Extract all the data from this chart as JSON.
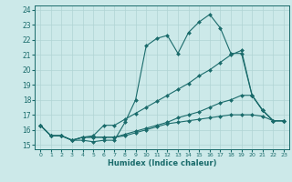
{
  "xlabel": "Humidex (Indice chaleur)",
  "xlim": [
    -0.5,
    23.5
  ],
  "ylim": [
    14.7,
    24.3
  ],
  "yticks": [
    15,
    16,
    17,
    18,
    19,
    20,
    21,
    22,
    23,
    24
  ],
  "xticks": [
    0,
    1,
    2,
    3,
    4,
    5,
    6,
    7,
    8,
    9,
    10,
    11,
    12,
    13,
    14,
    15,
    16,
    17,
    18,
    19,
    20,
    21,
    22,
    23
  ],
  "bg_color": "#cce9e9",
  "grid_color": "#b0d4d4",
  "line_color": "#1a6b6b",
  "lines": [
    {
      "x": [
        0,
        1,
        2,
        3,
        4,
        5,
        6,
        7,
        8,
        9,
        10,
        11,
        12,
        13,
        14,
        15,
        16,
        17,
        18,
        19,
        20,
        21,
        22,
        23
      ],
      "y": [
        16.3,
        15.6,
        15.6,
        15.3,
        15.3,
        15.2,
        15.3,
        15.3,
        16.5,
        18.0,
        21.6,
        22.1,
        22.3,
        21.1,
        22.5,
        23.2,
        23.7,
        22.8,
        21.1,
        21.1,
        18.3,
        17.3,
        16.6,
        16.6
      ]
    },
    {
      "x": [
        0,
        1,
        2,
        3,
        4,
        5,
        6,
        7,
        8,
        9,
        10,
        11,
        12,
        13,
        14,
        15,
        16,
        17,
        18,
        19,
        20,
        21,
        22,
        23
      ],
      "y": [
        16.3,
        15.6,
        15.6,
        15.3,
        15.5,
        15.6,
        16.3,
        16.3,
        16.7,
        17.1,
        17.5,
        17.9,
        18.3,
        18.7,
        19.1,
        19.6,
        20.0,
        20.5,
        21.0,
        21.3,
        18.3,
        17.3,
        16.6,
        16.6
      ]
    },
    {
      "x": [
        0,
        1,
        2,
        3,
        4,
        5,
        6,
        7,
        8,
        9,
        10,
        11,
        12,
        13,
        14,
        15,
        16,
        17,
        18,
        19,
        20,
        21,
        22,
        23
      ],
      "y": [
        16.3,
        15.6,
        15.6,
        15.3,
        15.5,
        15.5,
        15.5,
        15.5,
        15.7,
        15.9,
        16.1,
        16.3,
        16.5,
        16.8,
        17.0,
        17.2,
        17.5,
        17.8,
        18.0,
        18.3,
        18.3,
        17.3,
        16.6,
        16.6
      ]
    },
    {
      "x": [
        0,
        1,
        2,
        3,
        4,
        5,
        6,
        7,
        8,
        9,
        10,
        11,
        12,
        13,
        14,
        15,
        16,
        17,
        18,
        19,
        20,
        21,
        22,
        23
      ],
      "y": [
        16.3,
        15.6,
        15.6,
        15.3,
        15.5,
        15.5,
        15.5,
        15.5,
        15.6,
        15.8,
        16.0,
        16.2,
        16.4,
        16.5,
        16.6,
        16.7,
        16.8,
        16.9,
        17.0,
        17.0,
        17.0,
        16.9,
        16.6,
        16.6
      ]
    }
  ]
}
